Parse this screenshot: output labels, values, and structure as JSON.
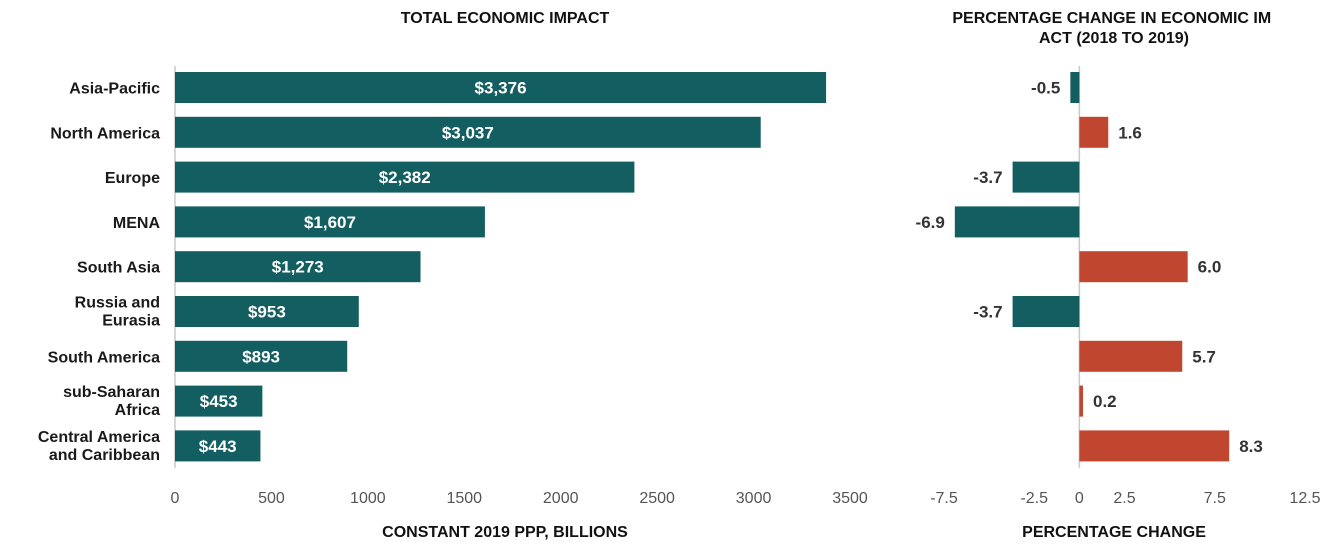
{
  "colors": {
    "primary": "#135E61",
    "positive": "#C1462F",
    "axis": "#c9c9c9",
    "label": "#1a1a1a",
    "tick": "#555555"
  },
  "chart_data": [
    {
      "type": "bar",
      "orientation": "horizontal",
      "title": "TOTAL ECONOMIC IMPACT",
      "xlabel": "CONSTANT 2019 PPP, BILLIONS",
      "ylabel": "",
      "categories": [
        "Asia-Pacific",
        "North America",
        "Europe",
        "MENA",
        "South Asia",
        "Russia and Eurasia",
        "South America",
        "sub-Saharan Africa",
        "Central America and Caribbean"
      ],
      "values": [
        3376,
        3037,
        2382,
        1607,
        1273,
        953,
        893,
        453,
        443
      ],
      "data_labels": [
        "$3,376",
        "$3,037",
        "$2,382",
        "$1,607",
        "$1,273",
        "$953",
        "$893",
        "$453",
        "$443"
      ],
      "xlim": [
        0,
        3500
      ],
      "xticks": [
        0,
        500,
        1000,
        1500,
        2000,
        2500,
        3000,
        3500
      ],
      "grid": false
    },
    {
      "type": "bar",
      "orientation": "horizontal",
      "title": "PERCENTAGE CHANGE IN ECONOMIC IMPACT (2018 TO 2019)",
      "xlabel": "PERCENTAGE CHANGE",
      "ylabel": "",
      "categories": [
        "Asia-Pacific",
        "North America",
        "Europe",
        "MENA",
        "South Asia",
        "Russia and Eurasia",
        "South America",
        "sub-Saharan Africa",
        "Central America and Caribbean"
      ],
      "values": [
        -0.5,
        1.6,
        -3.7,
        -6.9,
        6.0,
        -3.7,
        5.7,
        0.2,
        8.3
      ],
      "data_labels": [
        "-0.5",
        "1.6",
        "-3.7",
        "-6.9",
        "6.0",
        "-3.7",
        "5.7",
        "0.2",
        "8.3"
      ],
      "xlim": [
        -7.5,
        12.5
      ],
      "xticks": [
        -7.5,
        -2.5,
        0,
        2.5,
        7.5,
        12.5
      ],
      "grid": false
    }
  ]
}
